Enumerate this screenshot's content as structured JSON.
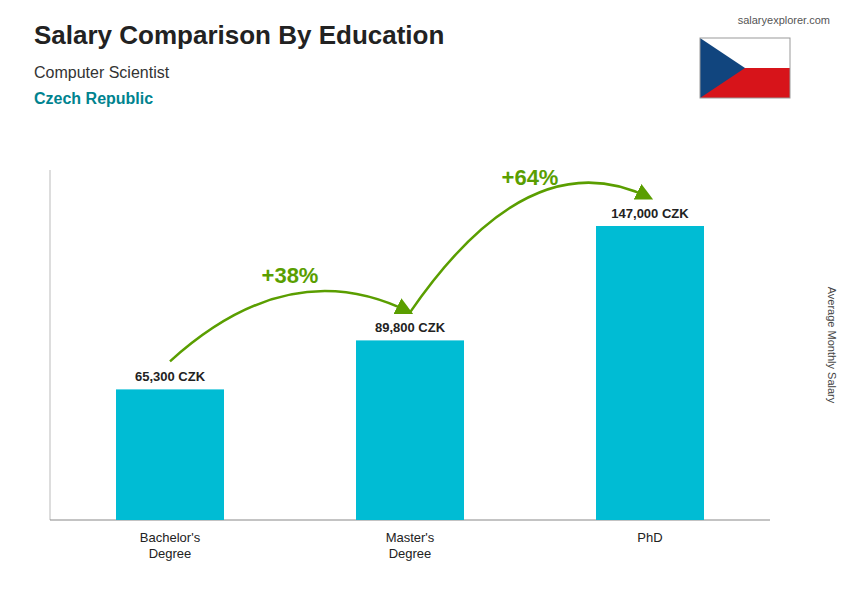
{
  "chart_data": {
    "type": "bar",
    "title": "Salary Comparison By Education",
    "subtitle": "Computer Scientist",
    "location": "Czech Republic",
    "watermark": "salaryexplorer.com",
    "ylabel": "Average Monthly Salary",
    "categories": [
      "Bachelor's\nDegree",
      "Master's\nDegree",
      "PhD"
    ],
    "values": [
      65300,
      89800,
      147000
    ],
    "value_labels": [
      "65,300 CZK",
      "89,800 CZK",
      "147,000 CZK"
    ],
    "data_labels": true,
    "annotations": [
      "+38%",
      "+64%"
    ],
    "color": "#00bcd4",
    "ylim": [
      0,
      175000
    ],
    "tick_labels": "x",
    "grid": false
  }
}
